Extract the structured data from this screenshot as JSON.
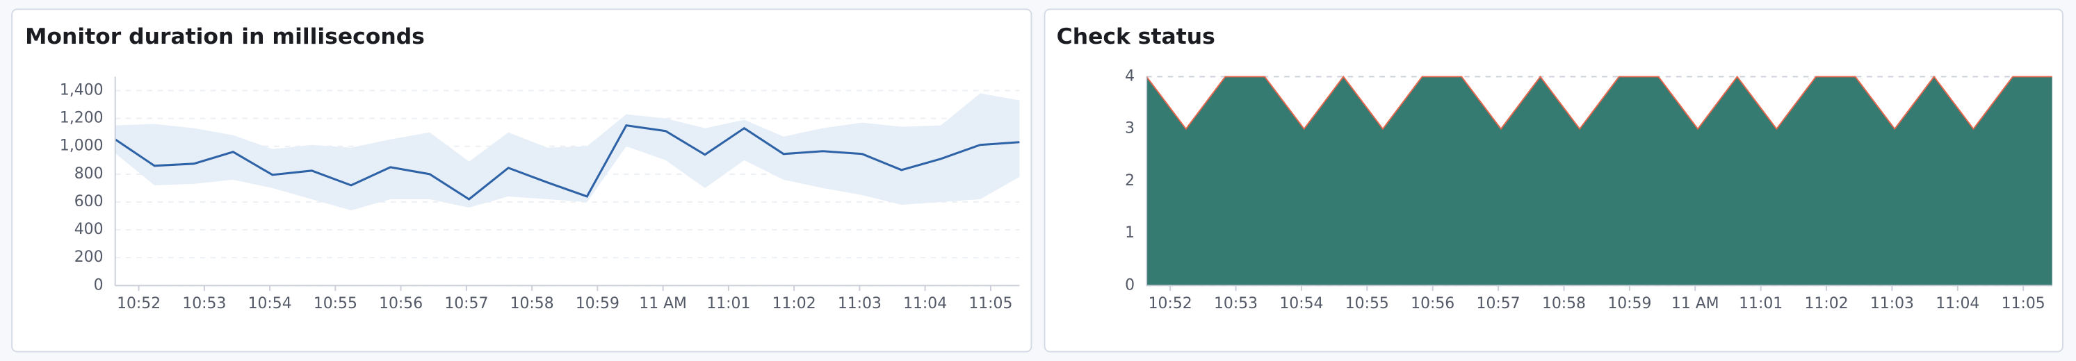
{
  "chart_data": [
    {
      "type": "line-band",
      "title": "Monitor duration in milliseconds",
      "x": [
        651.64,
        652.24,
        652.84,
        653.44,
        654.04,
        654.64,
        655.24,
        655.84,
        656.44,
        657.04,
        657.64,
        658.24,
        658.84,
        659.44,
        660.04,
        660.64,
        661.24,
        661.84,
        662.44,
        663.04,
        663.64,
        664.24,
        664.84,
        665.44
      ],
      "xlim": [
        651.64,
        665.44
      ],
      "xticks": [
        {
          "value": 652,
          "label": "10:52"
        },
        {
          "value": 653,
          "label": "10:53"
        },
        {
          "value": 654,
          "label": "10:54"
        },
        {
          "value": 655,
          "label": "10:55"
        },
        {
          "value": 656,
          "label": "10:56"
        },
        {
          "value": 657,
          "label": "10:57"
        },
        {
          "value": 658,
          "label": "10:58"
        },
        {
          "value": 659,
          "label": "10:59"
        },
        {
          "value": 660,
          "label": "11 AM"
        },
        {
          "value": 661,
          "label": "11:01"
        },
        {
          "value": 662,
          "label": "11:02"
        },
        {
          "value": 663,
          "label": "11:03"
        },
        {
          "value": 664,
          "label": "11:04"
        },
        {
          "value": 665,
          "label": "11:05"
        }
      ],
      "ylim": [
        0,
        1500
      ],
      "yticks": [
        0,
        200,
        400,
        600,
        800,
        {
          "value": 1000,
          "label": "1,000"
        },
        {
          "value": 1200,
          "label": "1,200"
        },
        {
          "value": 1400,
          "label": "1,400"
        }
      ],
      "grid": true,
      "series": [
        {
          "type": "band",
          "color": "#e6eef8",
          "upper": [
            1150,
            1160,
            1130,
            1080,
            980,
            1010,
            990,
            1050,
            1100,
            890,
            1100,
            990,
            1000,
            1230,
            1200,
            1130,
            1190,
            1070,
            1130,
            1170,
            1140,
            1150,
            1380,
            1330
          ],
          "lower": [
            950,
            720,
            730,
            760,
            700,
            620,
            540,
            620,
            620,
            560,
            640,
            620,
            600,
            1000,
            900,
            700,
            900,
            760,
            700,
            650,
            580,
            600,
            620,
            780
          ]
        },
        {
          "type": "line",
          "color": "#2d63a6",
          "values": [
            1050,
            860,
            875,
            960,
            795,
            825,
            720,
            850,
            800,
            620,
            845,
            740,
            640,
            1150,
            1110,
            940,
            1130,
            945,
            965,
            945,
            830,
            910,
            1010,
            1030
          ]
        }
      ]
    },
    {
      "type": "area",
      "title": "Check status",
      "x": [
        651.64,
        652.24,
        652.84,
        653.44,
        654.04,
        654.64,
        655.24,
        655.84,
        656.44,
        657.04,
        657.64,
        658.24,
        658.84,
        659.44,
        660.04,
        660.64,
        661.24,
        661.84,
        662.44,
        663.04,
        663.64,
        664.24,
        664.84,
        665.44
      ],
      "xlim": [
        651.64,
        665.44
      ],
      "xticks": [
        {
          "value": 652,
          "label": "10:52"
        },
        {
          "value": 653,
          "label": "10:53"
        },
        {
          "value": 654,
          "label": "10:54"
        },
        {
          "value": 655,
          "label": "10:55"
        },
        {
          "value": 656,
          "label": "10:56"
        },
        {
          "value": 657,
          "label": "10:57"
        },
        {
          "value": 658,
          "label": "10:58"
        },
        {
          "value": 659,
          "label": "10:59"
        },
        {
          "value": 660,
          "label": "11 AM"
        },
        {
          "value": 661,
          "label": "11:01"
        },
        {
          "value": 662,
          "label": "11:02"
        },
        {
          "value": 663,
          "label": "11:03"
        },
        {
          "value": 664,
          "label": "11:04"
        },
        {
          "value": 665,
          "label": "11:05"
        }
      ],
      "ylim": [
        0,
        4
      ],
      "yticks": [
        0,
        1,
        2,
        3,
        4
      ],
      "grid": true,
      "series": [
        {
          "type": "area",
          "color": "#367b72",
          "outline": "#e7664c",
          "values": [
            4,
            3,
            4,
            4,
            3,
            4,
            3,
            4,
            4,
            3,
            4,
            3,
            4,
            4,
            3,
            4,
            3,
            4,
            4,
            3,
            4,
            3,
            4,
            4
          ]
        }
      ]
    }
  ]
}
